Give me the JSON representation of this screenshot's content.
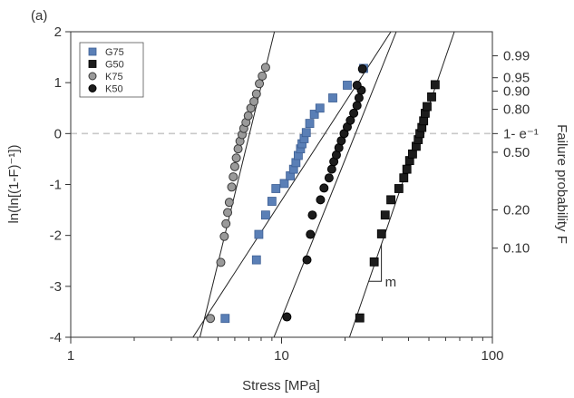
{
  "chart_data": {
    "type": "scatter",
    "panel_label": "(a)",
    "xlabel": "Stress [MPa]",
    "ylabel": "ln(ln[(1-F)⁻¹])",
    "y2label": "Failure probability F",
    "xscale": "log",
    "xlim": [
      1,
      100
    ],
    "ylim": [
      -4,
      2
    ],
    "x_ticks": [
      1,
      10,
      100
    ],
    "y_ticks": [
      -4,
      -3,
      -2,
      -1,
      0,
      1,
      2
    ],
    "y2_ticks": [
      {
        "label": "0.99",
        "F": 0.99
      },
      {
        "label": "0.95",
        "F": 0.95
      },
      {
        "label": "0.90",
        "F": 0.9
      },
      {
        "label": "0.80",
        "F": 0.8
      },
      {
        "label": "1- e⁻¹",
        "F": 0.632
      },
      {
        "label": "0.50",
        "F": 0.5
      },
      {
        "label": "0.20",
        "F": 0.2
      },
      {
        "label": "0.10",
        "F": 0.1
      }
    ],
    "reference_line": {
      "y": 0,
      "style": "dashed",
      "color": "#c8c8c8"
    },
    "annotation": {
      "text": "m"
    },
    "legend_position": "top-left",
    "series": [
      {
        "name": "G75",
        "marker": "square",
        "color": "#5a7fb6",
        "edge": "#3d5f94",
        "points": [
          [
            5.4,
            -3.63
          ],
          [
            7.6,
            -2.48
          ],
          [
            7.8,
            -1.98
          ],
          [
            8.4,
            -1.6
          ],
          [
            9.0,
            -1.33
          ],
          [
            9.4,
            -1.08
          ],
          [
            10.3,
            -0.98
          ],
          [
            11.0,
            -0.83
          ],
          [
            11.4,
            -0.7
          ],
          [
            11.7,
            -0.57
          ],
          [
            12.0,
            -0.43
          ],
          [
            12.3,
            -0.3
          ],
          [
            12.5,
            -0.2
          ],
          [
            12.8,
            -0.1
          ],
          [
            13.1,
            0.02
          ],
          [
            13.6,
            0.2
          ],
          [
            14.3,
            0.38
          ],
          [
            15.2,
            0.5
          ],
          [
            17.5,
            0.7
          ],
          [
            20.5,
            0.95
          ],
          [
            24.5,
            1.28
          ]
        ],
        "fit": {
          "x": [
            3.8,
            33.0
          ],
          "y": [
            -4.0,
            2.0
          ]
        }
      },
      {
        "name": "G50",
        "marker": "square",
        "color": "#1c1c1c",
        "edge": "#000000",
        "points": [
          [
            23.5,
            -3.62
          ],
          [
            27.5,
            -2.52
          ],
          [
            29.8,
            -1.97
          ],
          [
            31.0,
            -1.6
          ],
          [
            33.0,
            -1.3
          ],
          [
            36.0,
            -1.08
          ],
          [
            38.0,
            -0.87
          ],
          [
            39.3,
            -0.7
          ],
          [
            40.5,
            -0.53
          ],
          [
            41.8,
            -0.4
          ],
          [
            43.5,
            -0.25
          ],
          [
            44.5,
            -0.12
          ],
          [
            45.3,
            0.0
          ],
          [
            46.3,
            0.12
          ],
          [
            47.2,
            0.25
          ],
          [
            48.0,
            0.4
          ],
          [
            49.0,
            0.53
          ],
          [
            51.5,
            0.72
          ],
          [
            53.5,
            0.96
          ]
        ],
        "fit": {
          "x": [
            21.0,
            66.0
          ],
          "y": [
            -4.0,
            2.0
          ]
        }
      },
      {
        "name": "K75",
        "marker": "circle",
        "color": "#9a9a9a",
        "edge": "#3a3a3a",
        "points": [
          [
            4.6,
            -3.63
          ],
          [
            5.15,
            -2.53
          ],
          [
            5.35,
            -2.02
          ],
          [
            5.45,
            -1.77
          ],
          [
            5.55,
            -1.55
          ],
          [
            5.65,
            -1.35
          ],
          [
            5.8,
            -1.05
          ],
          [
            5.9,
            -0.85
          ],
          [
            6.0,
            -0.65
          ],
          [
            6.1,
            -0.48
          ],
          [
            6.22,
            -0.3
          ],
          [
            6.35,
            -0.15
          ],
          [
            6.5,
            -0.02
          ],
          [
            6.62,
            0.1
          ],
          [
            6.78,
            0.22
          ],
          [
            6.95,
            0.35
          ],
          [
            7.15,
            0.5
          ],
          [
            7.4,
            0.63
          ],
          [
            7.6,
            0.78
          ],
          [
            7.85,
            0.98
          ],
          [
            8.1,
            1.13
          ],
          [
            8.4,
            1.3
          ]
        ],
        "fit": {
          "x": [
            4.1,
            9.25
          ],
          "y": [
            -4.0,
            2.0
          ]
        }
      },
      {
        "name": "K50",
        "marker": "circle",
        "color": "#1c1c1c",
        "edge": "#000000",
        "points": [
          [
            10.6,
            -3.6
          ],
          [
            13.2,
            -2.48
          ],
          [
            13.7,
            -1.98
          ],
          [
            14.0,
            -1.6
          ],
          [
            15.3,
            -1.3
          ],
          [
            15.9,
            -1.07
          ],
          [
            16.8,
            -0.87
          ],
          [
            17.3,
            -0.7
          ],
          [
            17.7,
            -0.55
          ],
          [
            18.2,
            -0.42
          ],
          [
            18.7,
            -0.28
          ],
          [
            19.2,
            -0.14
          ],
          [
            19.8,
            0.0
          ],
          [
            20.5,
            0.13
          ],
          [
            21.2,
            0.26
          ],
          [
            22.0,
            0.4
          ],
          [
            22.8,
            0.55
          ],
          [
            23.3,
            0.7
          ],
          [
            23.9,
            0.85
          ],
          [
            22.8,
            0.95
          ],
          [
            24.2,
            1.27
          ]
        ],
        "fit": {
          "x": [
            9.2,
            35.0
          ],
          "y": [
            -4.0,
            2.0
          ]
        }
      }
    ]
  }
}
